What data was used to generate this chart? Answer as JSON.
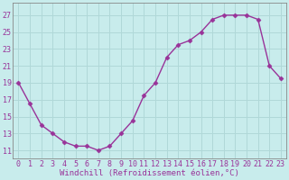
{
  "x": [
    0,
    1,
    2,
    3,
    4,
    5,
    6,
    7,
    8,
    9,
    10,
    11,
    12,
    13,
    14,
    15,
    16,
    17,
    18,
    19,
    20,
    21,
    22,
    23
  ],
  "y": [
    19,
    16.5,
    14,
    13,
    12,
    11.5,
    11.5,
    11,
    11.5,
    13,
    14.5,
    17.5,
    19,
    22,
    23.5,
    24,
    25,
    26.5,
    27,
    27,
    27,
    26.5,
    21,
    19.5
  ],
  "line_color": "#993399",
  "marker": "D",
  "marker_size": 2.5,
  "bg_color": "#c8ecec",
  "grid_color": "#b0d8d8",
  "xlabel": "Windchill (Refroidissement éolien,°C)",
  "xlabel_color": "#993399",
  "yticks": [
    11,
    13,
    15,
    17,
    19,
    21,
    23,
    25,
    27
  ],
  "ylim": [
    10.0,
    28.5
  ],
  "xlim": [
    -0.5,
    23.5
  ],
  "tick_color": "#993399",
  "tick_fontsize": 6,
  "xlabel_fontsize": 6.5,
  "linewidth": 1.0
}
